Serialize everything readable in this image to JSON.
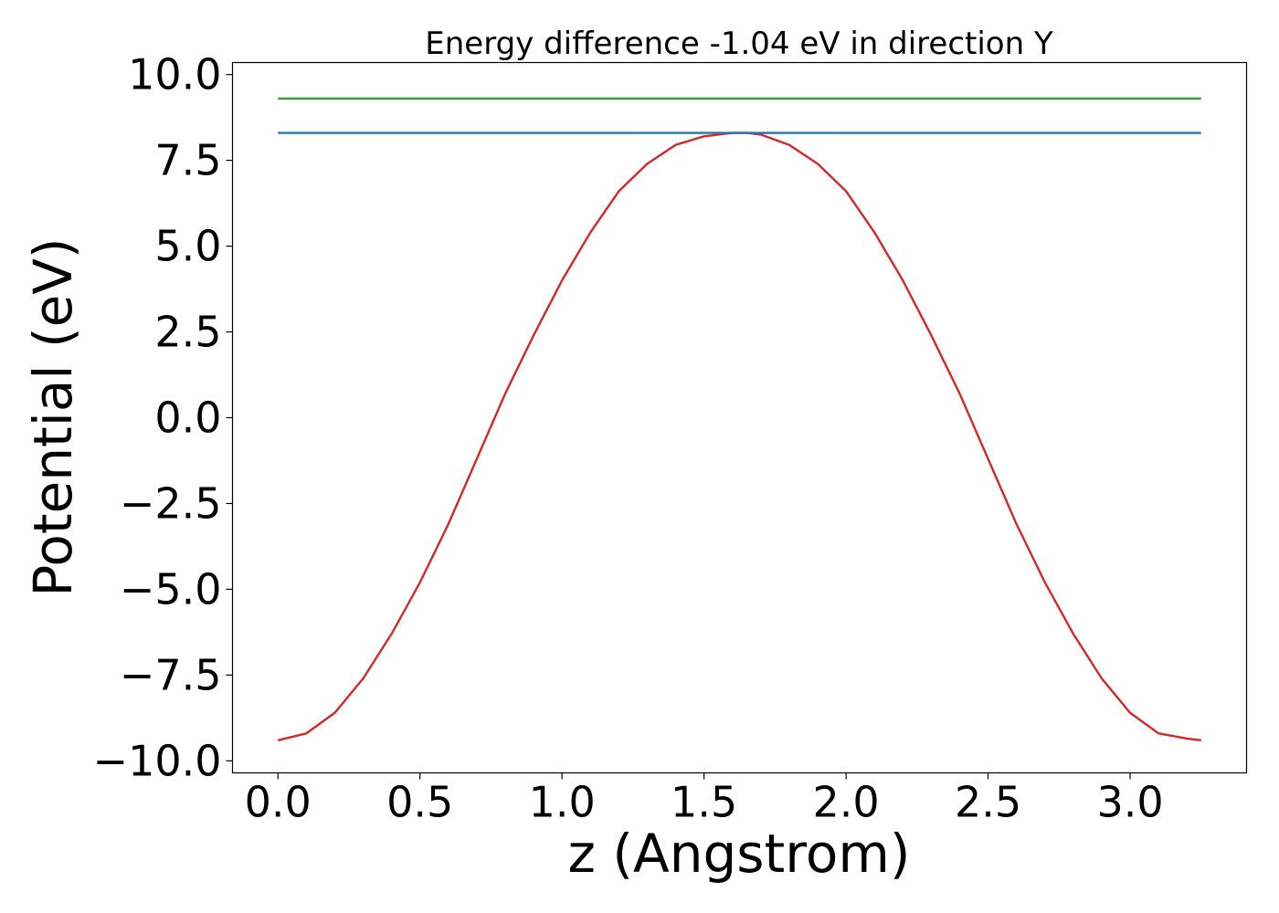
{
  "chart_data": {
    "type": "line",
    "title": "Energy difference -1.04 eV in direction Y",
    "xlabel": "z (Angstrom)",
    "ylabel": "Potential (eV)",
    "xlim": [
      -0.16,
      3.41
    ],
    "ylim": [
      -10.35,
      10.35
    ],
    "xticks": [
      0.0,
      0.5,
      1.0,
      1.5,
      2.0,
      2.5,
      3.0
    ],
    "xtick_labels": [
      "0.0",
      "0.5",
      "1.0",
      "1.5",
      "2.0",
      "2.5",
      "3.0"
    ],
    "yticks": [
      10.0,
      7.5,
      5.0,
      2.5,
      0.0,
      -2.5,
      -5.0,
      -7.5,
      -10.0
    ],
    "ytick_labels": [
      "10.0",
      "7.5",
      "5.0",
      "2.5",
      "0.0",
      "−2.5",
      "−5.0",
      "−7.5",
      "−10.0"
    ],
    "grid": false,
    "series": [
      {
        "color": "#d62728",
        "x": [
          0.0,
          0.1,
          0.2,
          0.3,
          0.4,
          0.5,
          0.6,
          0.7,
          0.8,
          0.9,
          1.0,
          1.1,
          1.2,
          1.3,
          1.4,
          1.5,
          1.6,
          1.65,
          1.7,
          1.8,
          1.9,
          2.0,
          2.1,
          2.2,
          2.3,
          2.4,
          2.5,
          2.6,
          2.7,
          2.8,
          2.9,
          3.0,
          3.1,
          3.2,
          3.25
        ],
        "y": [
          -9.4,
          -9.2,
          -8.6,
          -7.6,
          -6.3,
          -4.8,
          -3.1,
          -1.2,
          0.7,
          2.4,
          4.0,
          5.4,
          6.6,
          7.4,
          7.95,
          8.2,
          8.3,
          8.3,
          8.25,
          7.95,
          7.4,
          6.6,
          5.4,
          4.0,
          2.4,
          0.7,
          -1.2,
          -3.1,
          -4.8,
          -6.3,
          -7.6,
          -8.6,
          -9.2,
          -9.35,
          -9.4
        ]
      },
      {
        "color": "#1f77b4",
        "x": [
          0.0,
          3.25
        ],
        "y": [
          8.3,
          8.3
        ]
      },
      {
        "color": "#2ca02c",
        "x": [
          0.0,
          3.25
        ],
        "y": [
          9.3,
          9.3
        ]
      }
    ]
  }
}
